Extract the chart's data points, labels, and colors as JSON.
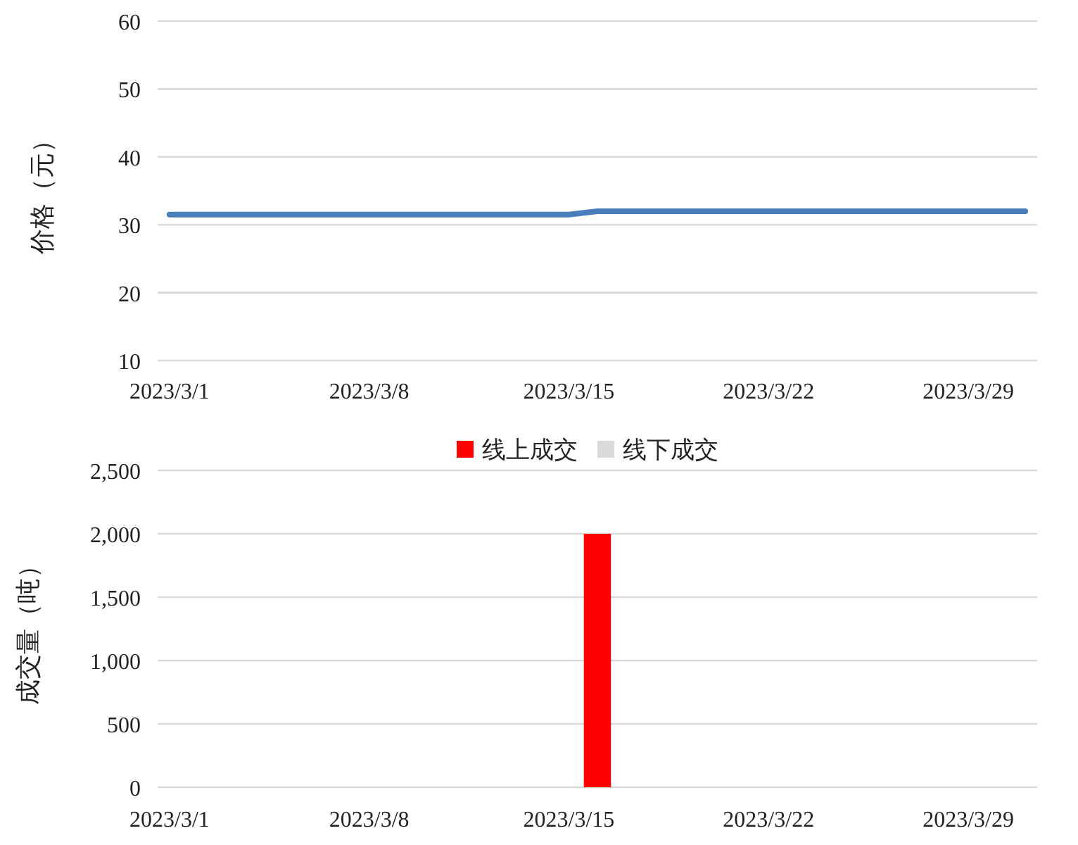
{
  "chart_data": [
    {
      "type": "line",
      "ylabel": "价格（元）",
      "x": [
        "2023-03-01",
        "2023-03-02",
        "2023-03-03",
        "2023-03-06",
        "2023-03-07",
        "2023-03-08",
        "2023-03-09",
        "2023-03-10",
        "2023-03-13",
        "2023-03-14",
        "2023-03-15",
        "2023-03-16",
        "2023-03-17",
        "2023-03-20",
        "2023-03-21",
        "2023-03-22",
        "2023-03-23",
        "2023-03-24",
        "2023-03-27",
        "2023-03-28",
        "2023-03-29",
        "2023-03-30",
        "2023-03-31"
      ],
      "series": [
        {
          "color": "#4a7ebb",
          "values": [
            31.5,
            31.5,
            31.5,
            31.5,
            31.5,
            31.5,
            31.5,
            31.5,
            31.5,
            31.5,
            31.5,
            32,
            32,
            32,
            32,
            32,
            32,
            32,
            32,
            32,
            32,
            32,
            32
          ]
        }
      ],
      "xlim": [
        "2023-02-28T14:00",
        "2023-03-31T10:00"
      ],
      "xticks": [
        {
          "value": "2023-03-01",
          "label": "2023/3/1"
        },
        {
          "value": "2023-03-08",
          "label": "2023/3/8"
        },
        {
          "value": "2023-03-15",
          "label": "2023/3/15"
        },
        {
          "value": "2023-03-22",
          "label": "2023/3/22"
        },
        {
          "value": "2023-03-29",
          "label": "2023/3/29"
        }
      ],
      "ylim": [
        10,
        60
      ],
      "yticks": [
        10,
        20,
        30,
        40,
        50,
        60
      ],
      "grid": "y",
      "legend": false
    },
    {
      "type": "bar",
      "ylabel": "成交量（吨）",
      "x": [
        "2023-03-01",
        "2023-03-02",
        "2023-03-03",
        "2023-03-06",
        "2023-03-07",
        "2023-03-08",
        "2023-03-09",
        "2023-03-10",
        "2023-03-13",
        "2023-03-14",
        "2023-03-15",
        "2023-03-16",
        "2023-03-17",
        "2023-03-20",
        "2023-03-21",
        "2023-03-22",
        "2023-03-23",
        "2023-03-24",
        "2023-03-27",
        "2023-03-28",
        "2023-03-29",
        "2023-03-30",
        "2023-03-31"
      ],
      "series": [
        {
          "name": "线上成交",
          "color": "#ff0000",
          "values": [
            0,
            0,
            0,
            0,
            0,
            0,
            0,
            0,
            0,
            0,
            0,
            2000,
            0,
            0,
            0,
            0,
            0,
            0,
            0,
            0,
            0,
            0,
            0
          ]
        },
        {
          "name": "线下成交",
          "color": "#d9d9d9",
          "values": [
            0,
            0,
            0,
            0,
            0,
            0,
            0,
            0,
            0,
            0,
            0,
            0,
            0,
            0,
            0,
            0,
            0,
            0,
            0,
            0,
            0,
            0,
            0
          ]
        }
      ],
      "xlim": [
        "2023-02-28T14:00",
        "2023-03-31T10:00"
      ],
      "xticks": [
        {
          "value": "2023-03-01",
          "label": "2023/3/1"
        },
        {
          "value": "2023-03-08",
          "label": "2023/3/8"
        },
        {
          "value": "2023-03-15",
          "label": "2023/3/15"
        },
        {
          "value": "2023-03-22",
          "label": "2023/3/22"
        },
        {
          "value": "2023-03-29",
          "label": "2023/3/29"
        }
      ],
      "ylim": [
        0,
        2500
      ],
      "yticks": [
        {
          "value": 0,
          "label": "0"
        },
        {
          "value": 500,
          "label": "500"
        },
        {
          "value": 1000,
          "label": "1,000"
        },
        {
          "value": 1500,
          "label": "1,500"
        },
        {
          "value": 2000,
          "label": "2,000"
        },
        {
          "value": 2500,
          "label": "2,500"
        }
      ],
      "grid": "y",
      "legend": "top"
    }
  ]
}
